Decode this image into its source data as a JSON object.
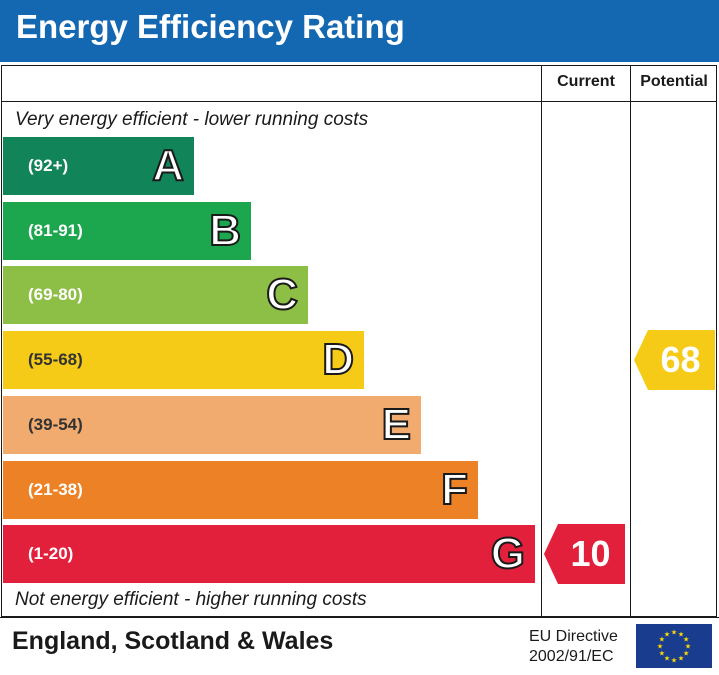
{
  "header": {
    "title": "Energy Efficiency Rating",
    "color": "#1467b1"
  },
  "columns": {
    "current": "Current",
    "potential": "Potential"
  },
  "notes": {
    "top": "Very energy efficient - lower running costs",
    "bottom": "Not energy efficient - higher running costs"
  },
  "chart_data": {
    "type": "bar",
    "categories": [
      "A",
      "B",
      "C",
      "D",
      "E",
      "F",
      "G"
    ],
    "bands": [
      {
        "letter": "A",
        "range": "(92+)",
        "min": 92,
        "max": 100,
        "color": "#12845a"
      },
      {
        "letter": "B",
        "range": "(81-91)",
        "min": 81,
        "max": 91,
        "color": "#1ca74f"
      },
      {
        "letter": "C",
        "range": "(69-80)",
        "min": 69,
        "max": 80,
        "color": "#8dbe45"
      },
      {
        "letter": "D",
        "range": "(55-68)",
        "min": 55,
        "max": 68,
        "color": "#f5cb18"
      },
      {
        "letter": "E",
        "range": "(39-54)",
        "min": 39,
        "max": 54,
        "color": "#f1ab6f"
      },
      {
        "letter": "F",
        "range": "(21-38)",
        "min": 21,
        "max": 38,
        "color": "#ec8125"
      },
      {
        "letter": "G",
        "range": "(1-20)",
        "min": 1,
        "max": 20,
        "color": "#e2203c"
      }
    ],
    "current": {
      "value": 10,
      "band": "G",
      "color": "#e2203c"
    },
    "potential": {
      "value": 68,
      "band": "D",
      "color": "#f5cb18"
    }
  },
  "footer": {
    "region": "England, Scotland & Wales",
    "directive_line1": "EU Directive",
    "directive_line2": "2002/91/EC",
    "flag_color": "#1a3c8f",
    "star_color": "#ffdd00"
  }
}
